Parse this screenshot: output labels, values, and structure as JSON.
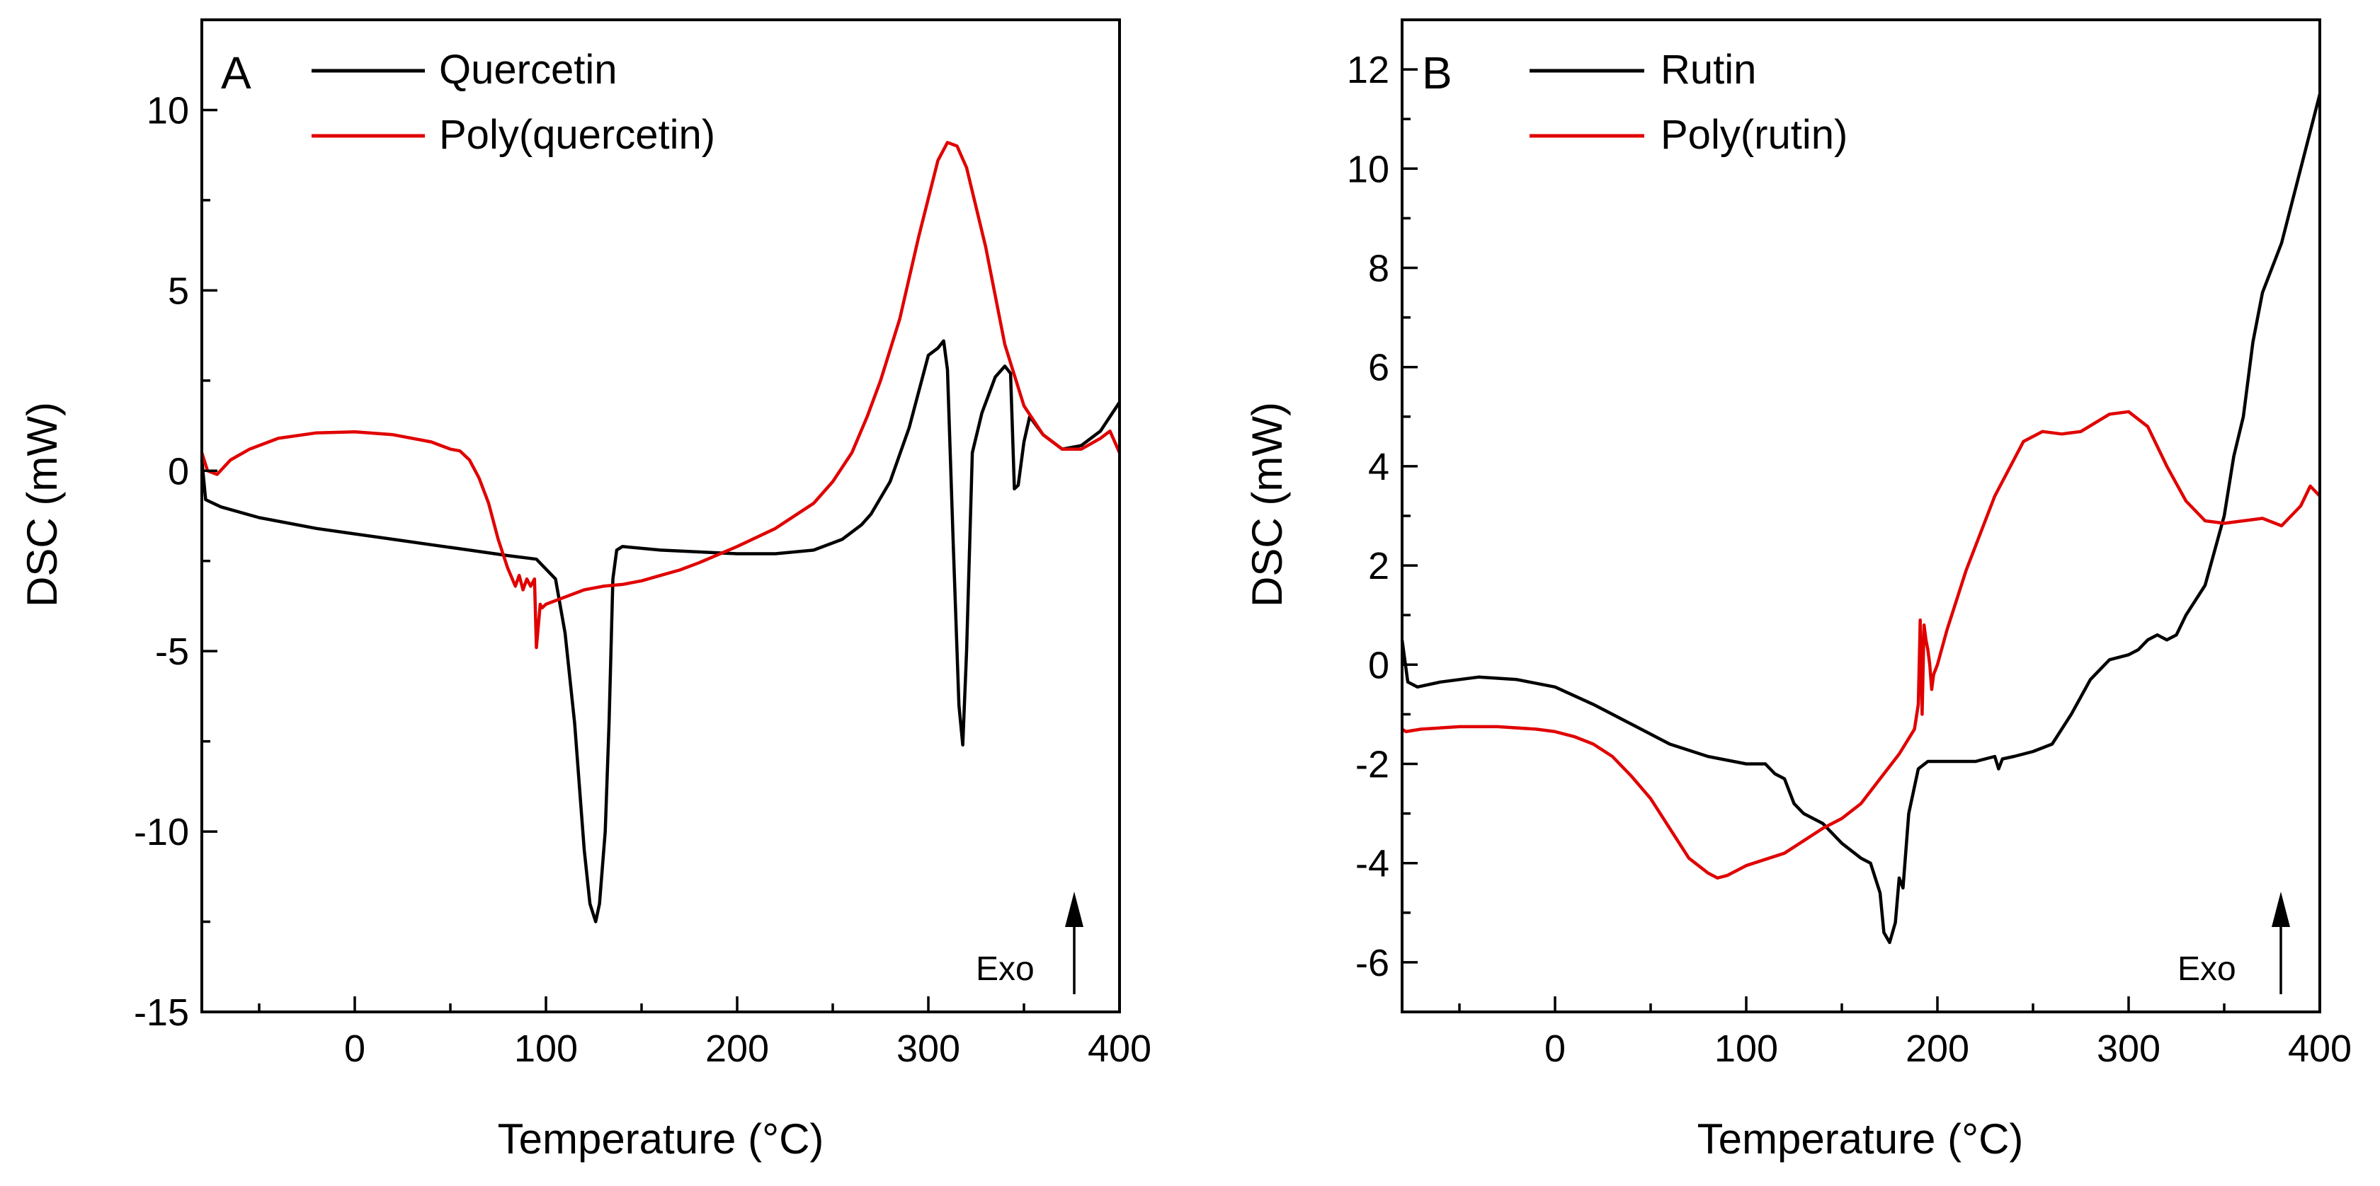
{
  "chart_data": [
    {
      "type": "line",
      "panel": "A",
      "xlabel": "Temperature (°C)",
      "ylabel": "DSC (mW)",
      "xlim": [
        -80,
        400
      ],
      "ylim": [
        -15,
        12.5
      ],
      "xticks": [
        0,
        100,
        200,
        300,
        400
      ],
      "yticks": [
        -15,
        -10,
        -5,
        0,
        5,
        10
      ],
      "annotation": "Exo",
      "series": [
        {
          "name": "Quercetin",
          "color": "#000000",
          "x": [
            -80,
            -78,
            -70,
            -50,
            -20,
            0,
            20,
            40,
            60,
            80,
            95,
            105,
            110,
            115,
            120,
            123,
            126,
            128,
            131,
            133,
            135,
            137,
            140,
            160,
            200,
            220,
            240,
            255,
            265,
            270,
            280,
            290,
            300,
            305,
            308,
            310,
            313,
            316,
            318,
            320,
            323,
            328,
            335,
            340,
            343,
            345,
            347,
            350,
            353,
            360,
            370,
            380,
            390,
            400
          ],
          "values": [
            0.3,
            -0.8,
            -1.0,
            -1.3,
            -1.6,
            -1.75,
            -1.9,
            -2.05,
            -2.2,
            -2.35,
            -2.45,
            -3.0,
            -4.5,
            -7.0,
            -10.5,
            -12.0,
            -12.5,
            -12.0,
            -10.0,
            -7.0,
            -3.0,
            -2.2,
            -2.1,
            -2.2,
            -2.3,
            -2.3,
            -2.2,
            -1.9,
            -1.5,
            -1.2,
            -0.3,
            1.2,
            3.2,
            3.4,
            3.6,
            2.8,
            -2.0,
            -6.5,
            -7.6,
            -5.0,
            0.5,
            1.6,
            2.6,
            2.9,
            2.7,
            -0.5,
            -0.4,
            0.8,
            1.5,
            1.0,
            0.6,
            0.7,
            1.1,
            1.9
          ]
        },
        {
          "name": "Poly(quercetin)",
          "color": "#e00000",
          "x": [
            -80,
            -77,
            -72,
            -65,
            -55,
            -40,
            -20,
            0,
            20,
            40,
            50,
            55,
            60,
            65,
            70,
            75,
            80,
            84,
            86,
            88,
            90,
            92,
            94,
            95,
            96,
            97,
            98,
            100,
            110,
            120,
            130,
            140,
            150,
            160,
            170,
            180,
            200,
            220,
            240,
            250,
            260,
            268,
            275,
            285,
            295,
            305,
            310,
            315,
            320,
            330,
            340,
            350,
            360,
            370,
            380,
            390,
            395,
            400
          ],
          "values": [
            0.5,
            0.0,
            -0.1,
            0.3,
            0.6,
            0.9,
            1.05,
            1.08,
            1.0,
            0.8,
            0.6,
            0.55,
            0.3,
            -0.2,
            -0.9,
            -1.9,
            -2.7,
            -3.2,
            -2.9,
            -3.3,
            -3.0,
            -3.2,
            -3.0,
            -4.9,
            -4.3,
            -3.7,
            -3.8,
            -3.7,
            -3.5,
            -3.3,
            -3.2,
            -3.15,
            -3.05,
            -2.9,
            -2.75,
            -2.55,
            -2.1,
            -1.6,
            -0.9,
            -0.3,
            0.5,
            1.5,
            2.5,
            4.2,
            6.5,
            8.6,
            9.1,
            9.0,
            8.4,
            6.2,
            3.5,
            1.8,
            1.0,
            0.6,
            0.6,
            0.9,
            1.1,
            0.5
          ]
        }
      ]
    },
    {
      "type": "line",
      "panel": "B",
      "xlabel": "Temperature (°C)",
      "ylabel": "DSC (mW)",
      "xlim": [
        -80,
        400
      ],
      "ylim": [
        -7,
        13
      ],
      "xticks": [
        0,
        100,
        200,
        300,
        400
      ],
      "yticks": [
        -6,
        -4,
        -2,
        0,
        2,
        4,
        6,
        8,
        10,
        12
      ],
      "annotation": "Exo",
      "series": [
        {
          "name": "Rutin",
          "color": "#000000",
          "x": [
            -80,
            -77,
            -72,
            -60,
            -40,
            -20,
            0,
            20,
            40,
            60,
            80,
            100,
            110,
            115,
            120,
            125,
            130,
            140,
            150,
            160,
            165,
            170,
            172,
            175,
            178,
            180,
            182,
            185,
            190,
            195,
            200,
            220,
            230,
            232,
            234,
            240,
            250,
            260,
            270,
            280,
            290,
            300,
            305,
            310,
            315,
            320,
            325,
            330,
            340,
            345,
            350,
            355,
            360,
            365,
            370,
            380,
            390,
            400
          ],
          "values": [
            0.5,
            -0.35,
            -0.45,
            -0.35,
            -0.25,
            -0.3,
            -0.45,
            -0.8,
            -1.2,
            -1.6,
            -1.85,
            -2.0,
            -2.0,
            -2.2,
            -2.3,
            -2.8,
            -3.0,
            -3.2,
            -3.6,
            -3.9,
            -4.0,
            -4.6,
            -5.4,
            -5.6,
            -5.2,
            -4.3,
            -4.5,
            -3.0,
            -2.1,
            -1.95,
            -1.95,
            -1.95,
            -1.85,
            -2.1,
            -1.9,
            -1.85,
            -1.75,
            -1.6,
            -1.0,
            -0.3,
            0.1,
            0.2,
            0.3,
            0.5,
            0.6,
            0.5,
            0.6,
            1.0,
            1.6,
            2.3,
            3.0,
            4.2,
            5.0,
            6.5,
            7.5,
            8.5,
            10.0,
            11.5
          ]
        },
        {
          "name": "Poly(rutin)",
          "color": "#e00000",
          "x": [
            -80,
            -78,
            -70,
            -50,
            -30,
            -10,
            0,
            10,
            20,
            30,
            40,
            50,
            60,
            70,
            80,
            85,
            90,
            100,
            120,
            130,
            140,
            150,
            160,
            170,
            180,
            188,
            190,
            191,
            192,
            193,
            194,
            195,
            196,
            197,
            198,
            200,
            205,
            215,
            230,
            245,
            255,
            265,
            275,
            290,
            300,
            310,
            320,
            330,
            340,
            350,
            360,
            370,
            380,
            390,
            395,
            400
          ],
          "values": [
            -1.3,
            -1.35,
            -1.3,
            -1.25,
            -1.25,
            -1.3,
            -1.35,
            -1.45,
            -1.6,
            -1.85,
            -2.25,
            -2.7,
            -3.3,
            -3.9,
            -4.2,
            -4.3,
            -4.25,
            -4.05,
            -3.8,
            -3.55,
            -3.3,
            -3.1,
            -2.8,
            -2.3,
            -1.8,
            -1.3,
            -0.8,
            0.9,
            -1.0,
            0.8,
            0.5,
            0.3,
            0.0,
            -0.5,
            -0.2,
            0.0,
            0.7,
            1.9,
            3.4,
            4.5,
            4.7,
            4.65,
            4.7,
            5.05,
            5.1,
            4.8,
            4.0,
            3.3,
            2.9,
            2.85,
            2.9,
            2.95,
            2.8,
            3.2,
            3.6,
            3.4
          ]
        }
      ]
    }
  ]
}
